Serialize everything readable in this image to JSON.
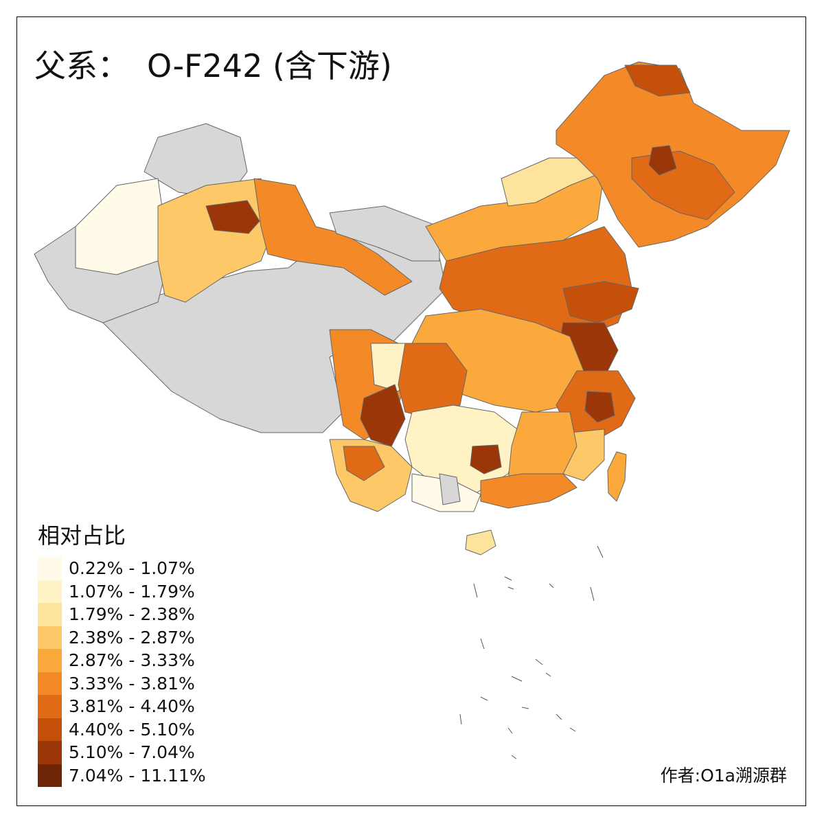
{
  "title": {
    "prefix": "父系：",
    "main": "O-F242 (含下游)"
  },
  "legend": {
    "title": "相对占比",
    "items": [
      {
        "label": "0.22% - 1.07%",
        "color": "#fffbe8"
      },
      {
        "label": "1.07% - 1.79%",
        "color": "#fff2c4"
      },
      {
        "label": "1.79% - 2.38%",
        "color": "#fee39c"
      },
      {
        "label": "2.38% - 2.87%",
        "color": "#fdc868"
      },
      {
        "label": "2.87% - 3.33%",
        "color": "#fba83d"
      },
      {
        "label": "3.33% - 3.81%",
        "color": "#f38a27"
      },
      {
        "label": "3.81% - 4.40%",
        "color": "#e06a16"
      },
      {
        "label": "4.40% - 5.10%",
        "color": "#c5500a"
      },
      {
        "label": "5.10% - 7.04%",
        "color": "#9a3607"
      },
      {
        "label": "7.04% - 11.11%",
        "color": "#6e2506"
      }
    ],
    "no_data_color": "#d7d7d7"
  },
  "credit": "作者:O1a溯源群"
}
